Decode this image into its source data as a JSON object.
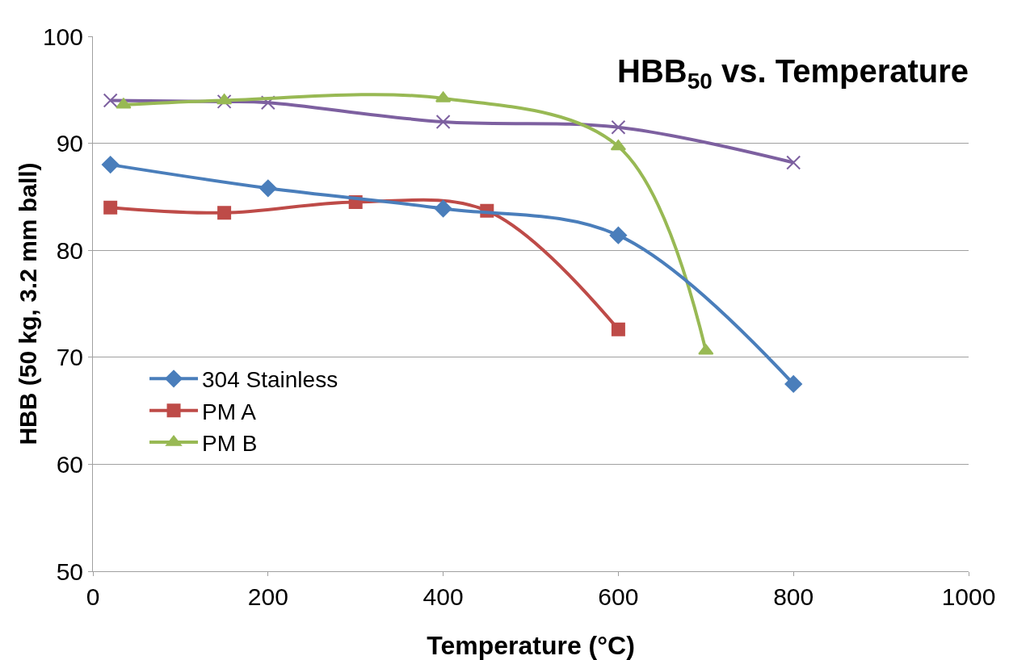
{
  "chart_data": {
    "type": "line",
    "title": "HBB$_{50}$ vs. Temperature",
    "xlabel": "Temperature (°C)",
    "ylabel": "HBB (50 kg, 3.2 mm ball)",
    "xlim": [
      0,
      1000
    ],
    "xticks": [
      0,
      200,
      400,
      600,
      800,
      1000
    ],
    "ylim": [
      50,
      100
    ],
    "yticks": [
      50,
      60,
      70,
      80,
      90,
      100
    ],
    "grid": "y",
    "legend": "left",
    "series": [
      {
        "name": "304 Stainless",
        "color": "#4a7ebb",
        "marker": "diamond",
        "x": [
          20,
          200,
          400,
          600,
          800
        ],
        "values": [
          88,
          85.8,
          83.9,
          81.4,
          67.5
        ]
      },
      {
        "name": "PM A",
        "color": "#be4b48",
        "marker": "square",
        "x": [
          20,
          150,
          300,
          450,
          600
        ],
        "values": [
          84,
          83.5,
          84.5,
          83.7,
          72.6
        ]
      },
      {
        "name": "PM B",
        "color": "#98b954",
        "marker": "triangle",
        "x": [
          35,
          150,
          400,
          600,
          700
        ],
        "values": [
          93.6,
          94,
          94.2,
          89.7,
          70.6
        ]
      },
      {
        "color": "#7d60a0",
        "marker": "cross",
        "x": [
          20,
          150,
          200,
          400,
          600,
          800
        ],
        "values": [
          94,
          93.9,
          93.8,
          92,
          91.5,
          88.2
        ]
      }
    ]
  }
}
